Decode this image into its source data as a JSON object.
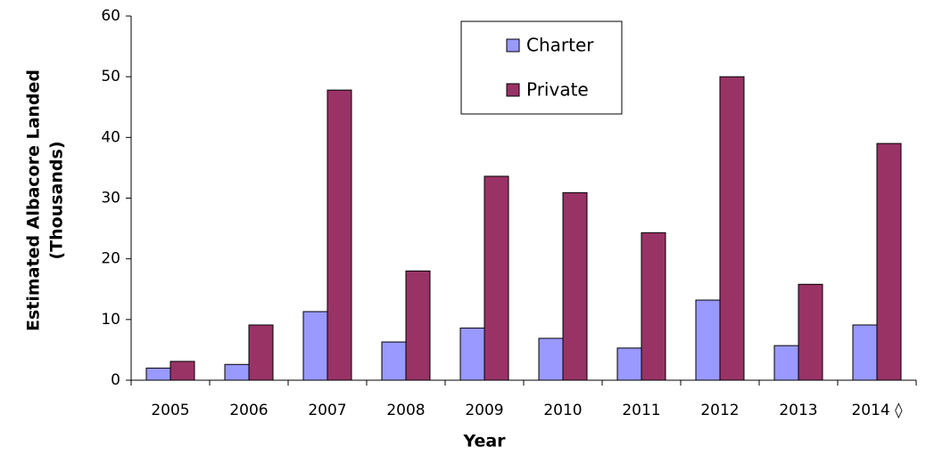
{
  "chart_data": {
    "type": "bar",
    "xlabel": "Year",
    "ylabel": [
      "Estimated Albacore Landed",
      "(Thousands)"
    ],
    "categories": [
      "2005",
      "2006",
      "2007",
      "2008",
      "2009",
      "2010",
      "2011",
      "2012",
      "2013",
      "2014 ◊"
    ],
    "series": [
      {
        "name": "Charter",
        "color": "#9999ff",
        "values": [
          2.0,
          2.6,
          11.3,
          6.3,
          8.6,
          6.9,
          5.3,
          13.2,
          5.7,
          9.1
        ]
      },
      {
        "name": "Private",
        "color": "#993366",
        "values": [
          3.1,
          9.1,
          47.8,
          18.0,
          33.6,
          30.9,
          24.3,
          50.0,
          15.8,
          39.0
        ]
      }
    ],
    "ylim": [
      0,
      60
    ],
    "yticks": [
      0,
      10,
      20,
      30,
      40,
      50,
      60
    ],
    "grid": false,
    "legend": "top-center"
  }
}
